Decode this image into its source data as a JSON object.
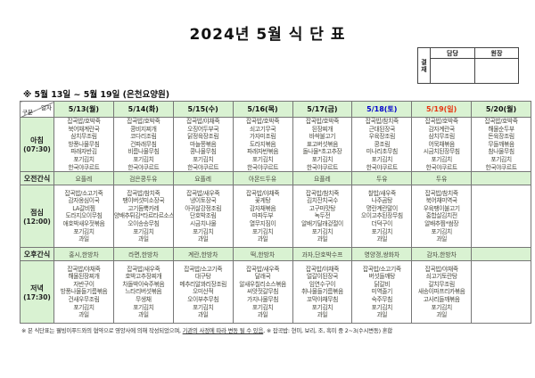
{
  "title": "2024년 5월 식 단 표",
  "subtitle": "※ 5월 13일 ~ 5월 19일 (은천요양원)",
  "approval": {
    "label": "결재",
    "columns": [
      "담당",
      "원장"
    ]
  },
  "table": {
    "corner": {
      "top": "일자",
      "bottom": "구분"
    },
    "columns": [
      {
        "label": "5/13(월)",
        "color": "#111111"
      },
      {
        "label": "5/14(화)",
        "color": "#111111"
      },
      {
        "label": "5/15(수)",
        "color": "#111111"
      },
      {
        "label": "5/16(목)",
        "color": "#111111"
      },
      {
        "label": "5/17(금)",
        "color": "#111111"
      },
      {
        "label": "5/18(토)",
        "color": "#0000cc"
      },
      {
        "label": "5/19(일)",
        "color": "#e8330f"
      },
      {
        "label": "5/20(월)",
        "color": "#111111"
      }
    ],
    "rows": [
      {
        "type": "meal",
        "name": "아침",
        "time": "(07:30)",
        "cells": [
          [
            "잡곡밥/호박죽",
            "북어채계란국",
            "삼치무조림",
            "방풍나물무침",
            "파래자반김",
            "포기김치",
            "한국야쿠르트"
          ],
          [
            "잡곡밥/호박죽",
            "콩비지찌개",
            "코다리조림",
            "건파래무침",
            "비름나물무침",
            "포기김치",
            "한국야쿠르트"
          ],
          [
            "잡곡밥/야채죽",
            "오징어두부국",
            "닭정육장조림",
            "마늘쫑볶음",
            "콩나물무침",
            "포기김치",
            "한국야쿠르트"
          ],
          [
            "잡곡밥/호박죽",
            "쇠고기무국",
            "가자미조림",
            "도라지볶음",
            "파래자반볶음",
            "포기김치",
            "한국야쿠르트"
          ],
          [
            "잡곡밥/호박죽",
            "된장찌개",
            "바싹불고기",
            "표고버섯볶음",
            "돌나물*초고추장",
            "포기김치",
            "한국야쿠르트"
          ],
          [
            "잡곡밥/참치죽",
            "근대된장국",
            "우육장조림",
            "콩조림",
            "미나리초무침",
            "포기김치",
            "한국야쿠르트"
          ],
          [
            "잡곡밥/호박죽",
            "감자계란국",
            "삼치무조림",
            "어묵채볶음",
            "시금치된장무침",
            "포기김치",
            "한국야쿠르트"
          ],
          [
            "잡곡밥/호박죽",
            "해물순두부",
            "돈육장조림",
            "무들깨볶음",
            "참나물무침",
            "포기김치",
            "한국야쿠르트"
          ]
        ]
      },
      {
        "type": "snack",
        "name": "오전간식",
        "time": "",
        "cells": [
          "요플레",
          "검은콩두유",
          "요플레",
          "아몬드두유",
          "요플레",
          "두유",
          "두유",
          ""
        ]
      },
      {
        "type": "meal",
        "name": "점심",
        "time": "(12:00)",
        "cells": [
          [
            "잡곡밥/소고기죽",
            "감자옹심이국",
            "LA갈비찜",
            "도라지오이무침",
            "애호박새우젓볶음",
            "포기김치",
            "과일"
          ],
          [
            "잡곡밥/참치죽",
            "팽이버섯미소장국",
            "고기듬뿍카레",
            "양배추튀김*타르타르소스",
            "오이송송무침",
            "포기김치",
            "과일"
          ],
          [
            "잡곡밥/새우죽",
            "냉이토장국",
            "아귀살강정조림",
            "단호박조림",
            "시금치나물",
            "포기김치",
            "과일"
          ],
          [
            "잡곡밥/야채죽",
            "꽃게탕",
            "감자채볶음",
            "마파두부",
            "열무지짐이",
            "포기김치",
            "과일"
          ],
          [
            "잡곡밥/참치죽",
            "김치잔치국수",
            "고구마맛탕",
            "녹두전",
            "알배기달래겉절이",
            "포기김치",
            "과일"
          ],
          [
            "찰밥/새우죽",
            "나주곰탕",
            "명란계란말이",
            "오이고추된장무침",
            "더덕구이",
            "포기김치",
            "과일"
          ],
          [
            "잡곡밥/참치죽",
            "북어채미역국",
            "우육팽이불고기",
            "홍합살김치전",
            "알배추찜*쌈장",
            "포기김치",
            "과일"
          ],
          []
        ]
      },
      {
        "type": "snack",
        "name": "오후간식",
        "time": "",
        "cells": [
          "홍시,한방차",
          "라면,한방차",
          "계란,한방차",
          "떡,한방차",
          "과자,단호박수프",
          "영양갱,쌍화차",
          "감자,한방차",
          ""
        ]
      },
      {
        "type": "meal",
        "name": "저녁",
        "time": "(17:30)",
        "cells": [
          [
            "잡곡밥/야채죽",
            "해물된장찌개",
            "자반구이",
            "방풍나물들기름볶음",
            "건새우무조림",
            "포기김치",
            "과일"
          ],
          [
            "잡곡밥/새우죽",
            "호박고추장찌개",
            "차돌박이숙주볶음",
            "느타리버섯볶음",
            "무생채",
            "포기김치",
            "과일"
          ],
          [
            "잡곡밥/소고기죽",
            "대구탕",
            "메추리알꽈리장조림",
            "오미산적",
            "오이부추무침",
            "포기김치",
            "과일"
          ],
          [
            "잡곡밥/새우죽",
            "달래국",
            "알새우칠리소스볶음",
            "씨앗젓갈무침",
            "가지나물무침",
            "포기김치",
            "과일"
          ],
          [
            "잡곡밥/야채죽",
            "얼갈이된장국",
            "임연수구이",
            "취나물들기름볶음",
            "꼬막야채무침",
            "포기김치",
            "과일"
          ],
          [
            "잡곡밥/소고기죽",
            "버섯들깨탕",
            "닭갈비",
            "미역줄기",
            "숙주무침",
            "포기김치",
            "과일"
          ],
          [
            "잡곡밥/야채죽",
            "쇠고기토란탕",
            "갈치무조림",
            "새송이파프리카볶음",
            "고사리들깨볶음",
            "포기김치",
            "과일"
          ],
          []
        ]
      }
    ]
  },
  "footer": {
    "part1": "※ 본 식단표는 웰빙이푸드와의 협약으로 영양사에 의해 작성되었으며, ",
    "underlined": "기관의 사정에 따라 변동 될 수 있음",
    "part2": ", ※ 잡곡밥: 현미, 보리, 조, 흑미 중 2~3(수시변동) 혼합"
  }
}
